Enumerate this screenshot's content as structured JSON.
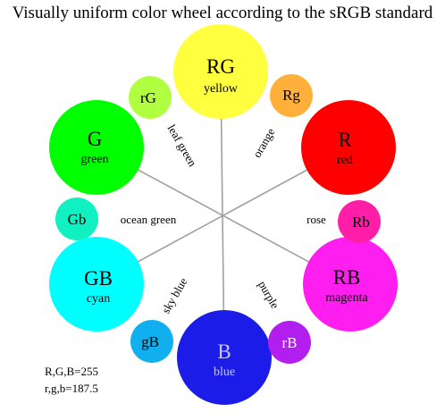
{
  "title": "Visually uniform color wheel according to the sRGB standard",
  "circles": [
    {
      "id": "rg-yellow",
      "code": "RG",
      "name": "yellow",
      "fill": "#ffff40",
      "text": "#000000"
    },
    {
      "id": "r-red",
      "code": "R",
      "name": "red",
      "fill": "#ff0000",
      "text": "#000000"
    },
    {
      "id": "rb-magenta",
      "code": "RB",
      "name": "magenta",
      "fill": "#ff1ef0",
      "text": "#000000"
    },
    {
      "id": "b-blue",
      "code": "B",
      "name": "blue",
      "fill": "#1c1ce8",
      "text": "#ffffff"
    },
    {
      "id": "gb-cyan",
      "code": "GB",
      "name": "cyan",
      "fill": "#00ffff",
      "text": "#000000"
    },
    {
      "id": "g-green",
      "code": "G",
      "name": "green",
      "fill": "#00ff00",
      "text": "#000000"
    },
    {
      "id": "rg-small",
      "code": "Rg",
      "name": "",
      "fill": "#ffb03b",
      "text": "#000000"
    },
    {
      "id": "rb-small",
      "code": "Rb",
      "name": "",
      "fill": "#ff1ea8",
      "text": "#000000"
    },
    {
      "id": "rbl-small",
      "code": "rB",
      "name": "",
      "fill": "#b21eee",
      "text": "#ffffff"
    },
    {
      "id": "gb-small",
      "code": "gB",
      "name": "",
      "fill": "#10b0ee",
      "text": "#000000"
    },
    {
      "id": "gbs-small",
      "code": "Gb",
      "name": "",
      "fill": "#10f0c0",
      "text": "#000000"
    },
    {
      "id": "rgl-small",
      "code": "rG",
      "name": "",
      "fill": "#b0ff40",
      "text": "#000000"
    }
  ],
  "spoke_labels": {
    "orange": "orange",
    "rose": "rose",
    "purple": "purple",
    "sky_blue": "sky blue",
    "ocean_green": "ocean green",
    "leaf_green": "leaf green"
  },
  "footnote": {
    "line1": "R,G,B=255",
    "line2": "r,g,b=187.5"
  },
  "colors": {
    "spoke": "#a0a0a0"
  }
}
